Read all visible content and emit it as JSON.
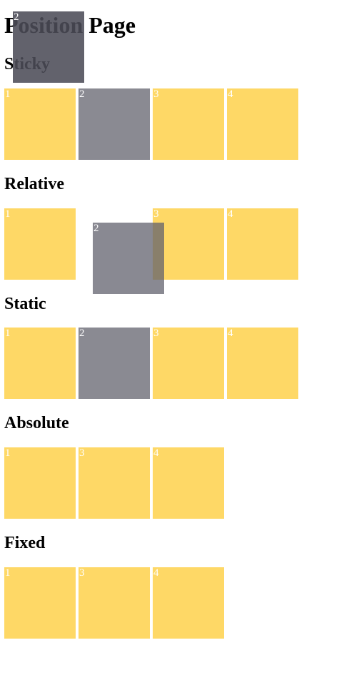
{
  "page": {
    "title": "Position Page"
  },
  "sections": {
    "sticky": {
      "heading": "Sticky",
      "boxes": [
        "1",
        "2",
        "3",
        "4"
      ],
      "floating_box": "2"
    },
    "relative": {
      "heading": "Relative",
      "boxes": [
        "1",
        "2",
        "3",
        "4"
      ]
    },
    "static": {
      "heading": "Static",
      "boxes": [
        "1",
        "2",
        "3",
        "4"
      ]
    },
    "absolute": {
      "heading": "Absolute",
      "boxes": [
        "1",
        "3",
        "4"
      ]
    },
    "fixed": {
      "heading": "Fixed",
      "boxes": [
        "1",
        "3",
        "4"
      ]
    }
  },
  "colors": {
    "box_yellow": "#fed866",
    "box_highlight_gray": "#8a8a92",
    "box_label_text": "#ffffff"
  }
}
